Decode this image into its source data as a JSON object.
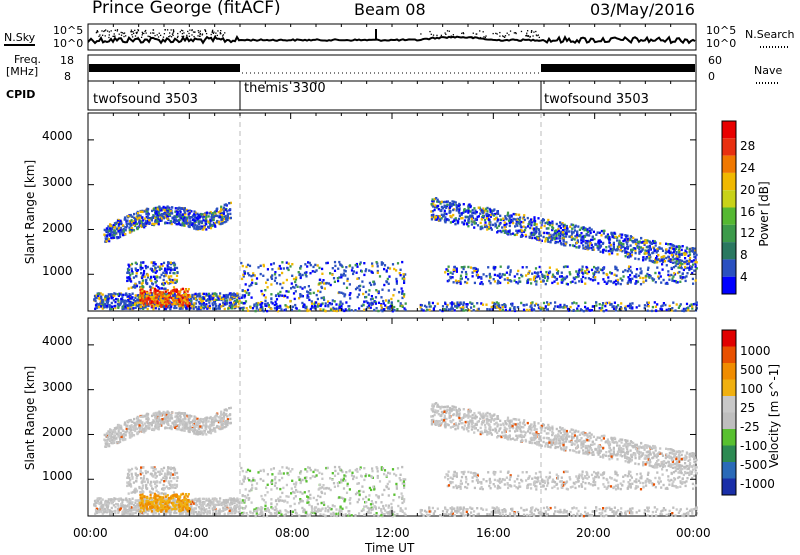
{
  "header": {
    "station": "Prince George (fitACF)",
    "beam": "Beam 08",
    "date": "03/May/2016"
  },
  "nsky_panel": {
    "left_label": "N.Sky",
    "right_label": "N.Search",
    "left_ticks": [
      "10^5",
      "10^0"
    ],
    "right_ticks": [
      "10^5",
      "10^0"
    ]
  },
  "freq_panel": {
    "left_label_line1": "Freq.",
    "left_label_line2": "[MHz]",
    "right_label": "Nave",
    "left_ticks": [
      "18",
      "8"
    ],
    "right_ticks": [
      "60",
      "0"
    ]
  },
  "cpid_panel": {
    "label": "CPID",
    "segments": [
      {
        "name": "twofsound 3503",
        "start_hour": 0,
        "end_hour": 6
      },
      {
        "name": "themis 3300",
        "start_hour": 6,
        "end_hour": 18
      },
      {
        "name": "twofsound 3503",
        "start_hour": 18,
        "end_hour": 24
      }
    ]
  },
  "chart_data": [
    {
      "type": "heatmap",
      "panel": "power",
      "xlabel": "",
      "ylabel": "Slant Range [km]",
      "xlim": [
        0,
        24
      ],
      "ylim": [
        180,
        4600
      ],
      "yticks": [
        1000,
        2000,
        3000,
        4000
      ],
      "colorbar": {
        "label": "Power [dB]",
        "ticks": [
          "4",
          "8",
          "12",
          "16",
          "20",
          "24",
          "28"
        ],
        "colors": [
          "#0000ff",
          "#2a50c0",
          "#2a7860",
          "#3c9a4a",
          "#55b832",
          "#c8d218",
          "#f0b800",
          "#f07800",
          "#e83010",
          "#e80000"
        ]
      }
    },
    {
      "type": "heatmap",
      "panel": "velocity",
      "xlabel": "Time UT",
      "ylabel": "Slant Range [km]",
      "xlim": [
        0,
        24
      ],
      "ylim": [
        180,
        4600
      ],
      "yticks": [
        1000,
        2000,
        3000,
        4000
      ],
      "xticks": [
        "00:00",
        "04:00",
        "08:00",
        "12:00",
        "16:00",
        "20:00",
        "00:00"
      ],
      "colorbar": {
        "label": "Velocity [m s^-1]",
        "ticks": [
          "1000",
          "500",
          "100",
          "25",
          "-25",
          "-100",
          "-500",
          "-1000"
        ],
        "colors": [
          "#1a2fa8",
          "#2a6ab8",
          "#2c8a52",
          "#58c030",
          "#bebebe",
          "#c8c8c8",
          "#f0b010",
          "#f08c00",
          "#e85000",
          "#e00000"
        ]
      }
    }
  ]
}
